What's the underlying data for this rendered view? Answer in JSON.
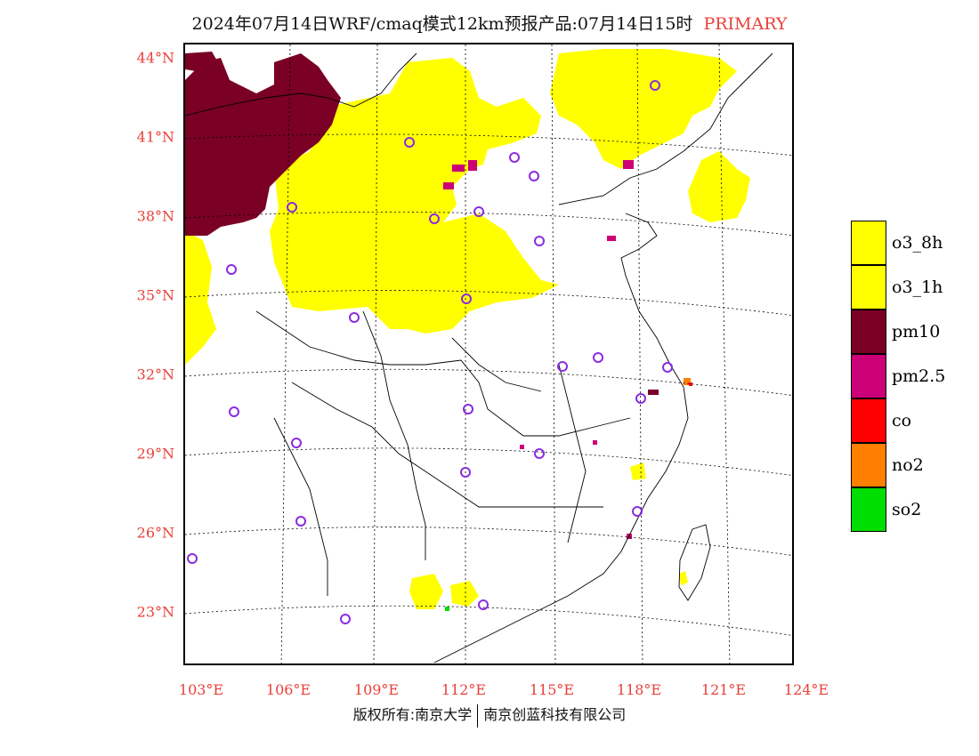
{
  "header": {
    "title": "2024年07月14日WRF/cmaq模式12km预报产品:07月14日15时",
    "tag": "PRIMARY"
  },
  "map": {
    "lat_labels": [
      "44°N",
      "41°N",
      "38°N",
      "35°N",
      "32°N",
      "29°N",
      "26°N",
      "23°N"
    ],
    "lon_labels": [
      "103°E",
      "106°E",
      "109°E",
      "112°E",
      "115°E",
      "118°E",
      "121°E",
      "124°E"
    ],
    "colors": {
      "o3": "#ffff00",
      "pm10": "#7a0026",
      "pm25": "#cc0077",
      "co": "#ff0000",
      "no2": "#ff7f00",
      "so2": "#00dd00",
      "station": "#8a2be2"
    }
  },
  "legend": {
    "items": [
      {
        "label": "o3_8h",
        "color": "#ffff00"
      },
      {
        "label": "o3_1h",
        "color": "#ffff00"
      },
      {
        "label": "pm10",
        "color": "#7a0026"
      },
      {
        "label": "pm2.5",
        "color": "#cc0077"
      },
      {
        "label": "co",
        "color": "#ff0000"
      },
      {
        "label": "no2",
        "color": "#ff7f00"
      },
      {
        "label": "so2",
        "color": "#00dd00"
      }
    ]
  },
  "footer": {
    "left": "版权所有:南京大学",
    "right": "南京创蓝科技有限公司"
  }
}
